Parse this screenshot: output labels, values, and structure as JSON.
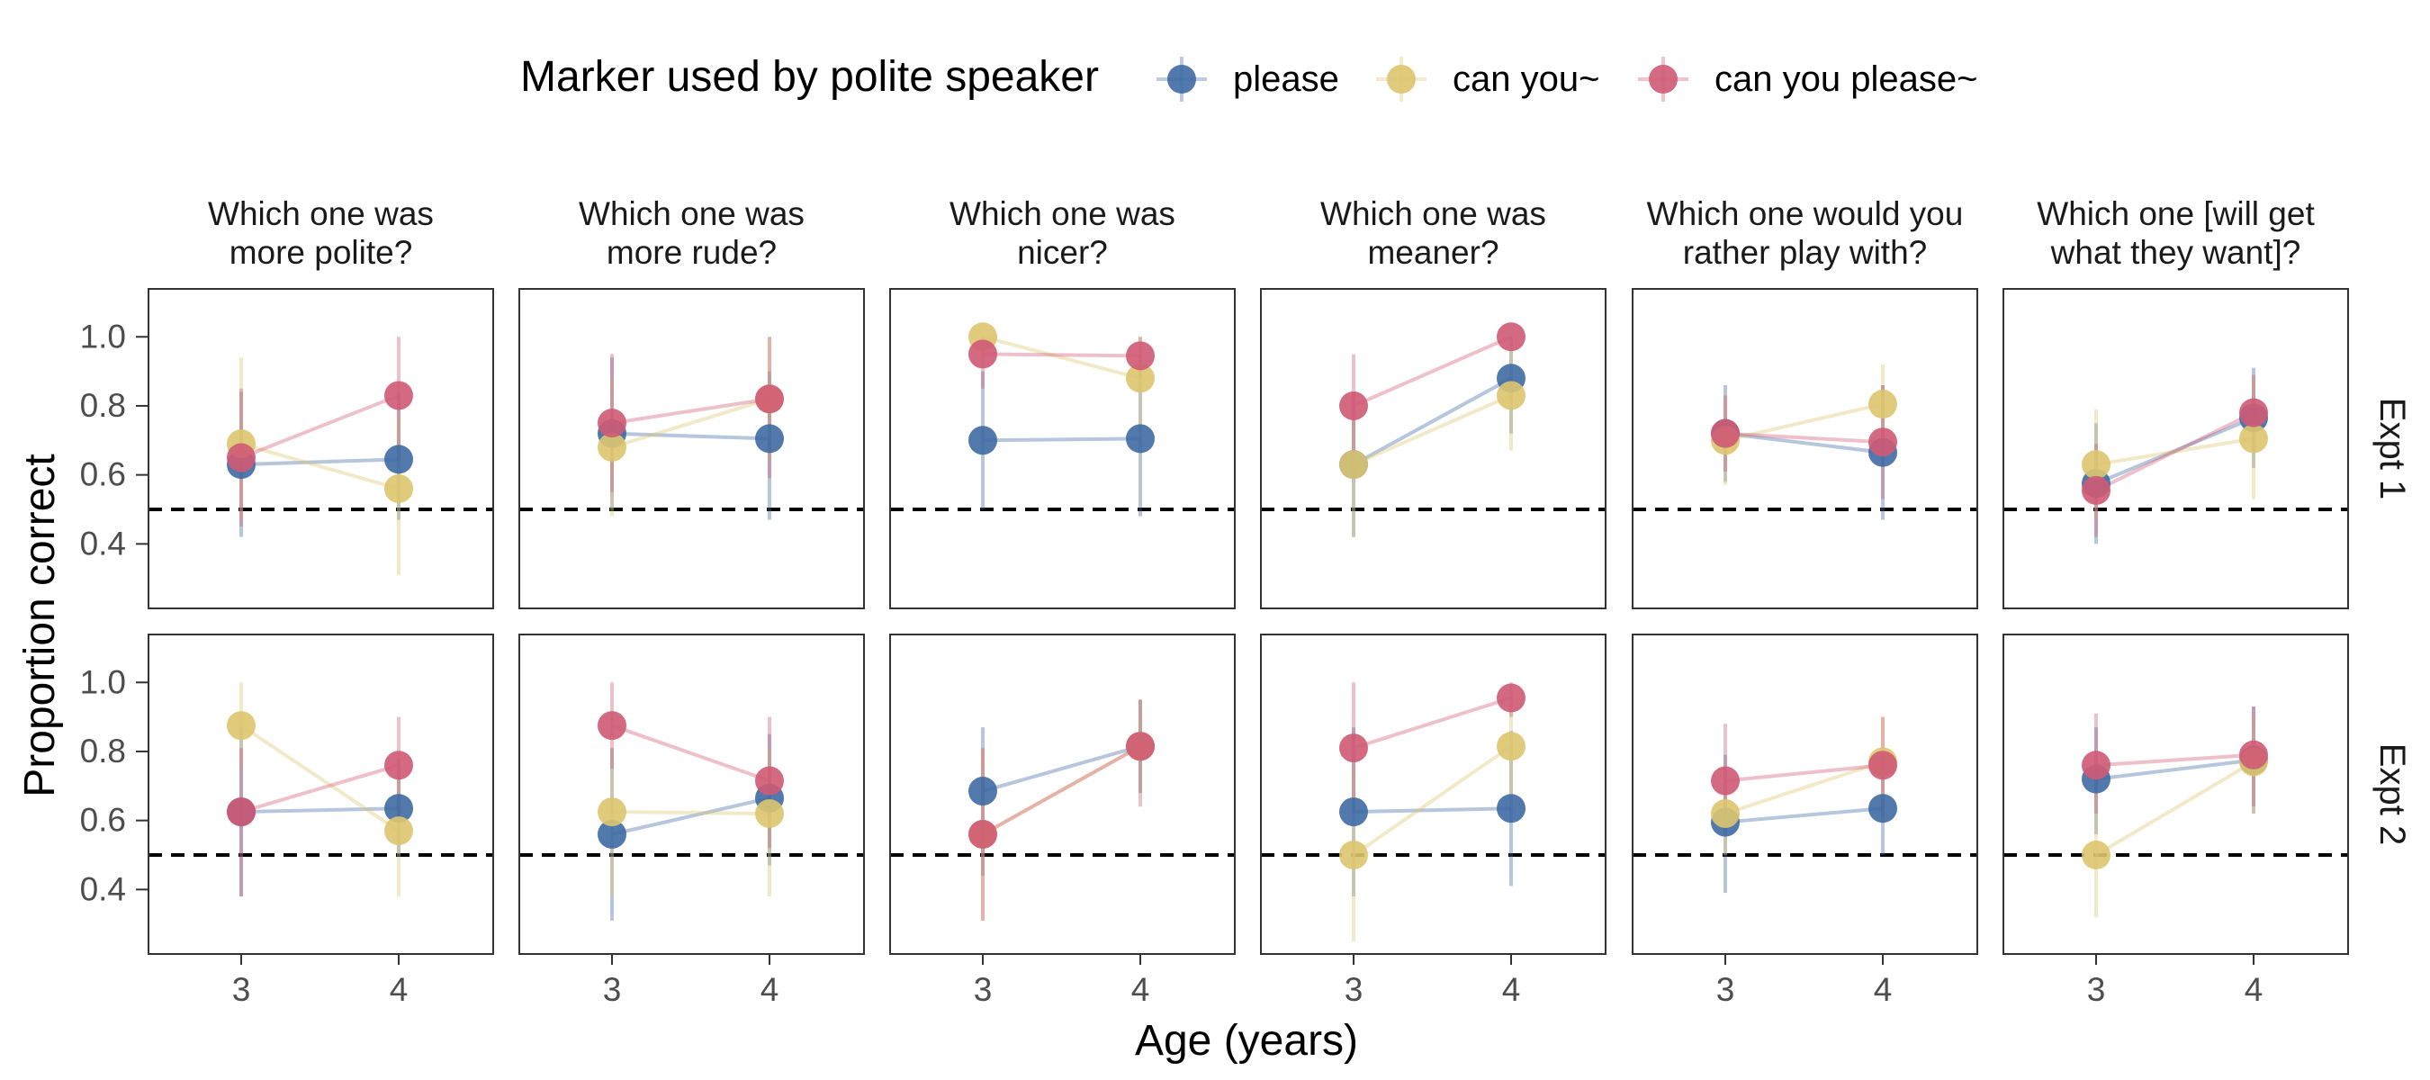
{
  "chart_data": {
    "type": "scatter",
    "xlabel": "Age (years)",
    "ylabel": "Proportion correct",
    "x_ticks": [
      "3",
      "4"
    ],
    "y_ticks": [
      "0.4",
      "0.6",
      "0.8",
      "1.0"
    ],
    "ylim": [
      0.22,
      1.14
    ],
    "reference_line": 0.5,
    "legend": {
      "title": "Marker used by polite speaker",
      "placement": "top",
      "entries": [
        {
          "name": "please",
          "color": "#3e6aa3"
        },
        {
          "name": "can you~",
          "color": "#ddc56f"
        },
        {
          "name": "can you please~",
          "color": "#cf5a74"
        }
      ]
    },
    "columns": [
      [
        "Which one was",
        "more polite?"
      ],
      [
        "Which one was",
        "more rude?"
      ],
      [
        "Which one was",
        "nicer?"
      ],
      [
        "Which one was",
        "meaner?"
      ],
      [
        "Which one would you",
        "rather play with?"
      ],
      [
        "Which one [will get",
        "what they want]?"
      ]
    ],
    "rows": [
      "Expt 1",
      "Expt 2"
    ],
    "panels": [
      [
        {
          "please": {
            "x": [
              3,
              4
            ],
            "y": [
              0.63,
              0.645
            ],
            "lo": [
              0.42,
              0.47
            ],
            "hi": [
              0.84,
              0.84
            ]
          },
          "can you~": {
            "x": [
              3,
              4
            ],
            "y": [
              0.69,
              0.56
            ],
            "lo": [
              0.47,
              0.31
            ],
            "hi": [
              0.94,
              0.78
            ]
          },
          "can you please~": {
            "x": [
              3,
              4
            ],
            "y": [
              0.65,
              0.83
            ],
            "lo": [
              0.45,
              0.64
            ],
            "hi": [
              0.85,
              1.0
            ]
          }
        },
        {
          "please": {
            "x": [
              3,
              4
            ],
            "y": [
              0.72,
              0.705
            ],
            "lo": [
              0.5,
              0.47
            ],
            "hi": [
              0.94,
              0.9
            ]
          },
          "can you~": {
            "x": [
              3,
              4
            ],
            "y": [
              0.68,
              0.82
            ],
            "lo": [
              0.48,
              0.64
            ],
            "hi": [
              0.88,
              1.0
            ]
          },
          "can you please~": {
            "x": [
              3,
              4
            ],
            "y": [
              0.75,
              0.82
            ],
            "lo": [
              0.55,
              0.59
            ],
            "hi": [
              0.95,
              1.0
            ]
          }
        },
        {
          "please": {
            "x": [
              3,
              4
            ],
            "y": [
              0.7,
              0.705
            ],
            "lo": [
              0.5,
              0.48
            ],
            "hi": [
              0.9,
              0.92
            ]
          },
          "can you~": {
            "x": [
              3,
              4
            ],
            "y": [
              1.0,
              0.88
            ],
            "lo": [
              1.0,
              0.7
            ],
            "hi": [
              1.0,
              1.0
            ]
          },
          "can you please~": {
            "x": [
              3,
              4
            ],
            "y": [
              0.95,
              0.945
            ],
            "lo": [
              0.85,
              0.88
            ],
            "hi": [
              1.0,
              1.0
            ]
          }
        },
        {
          "please": {
            "x": [
              3,
              4
            ],
            "y": [
              0.63,
              0.88
            ],
            "lo": [
              0.42,
              0.72
            ],
            "hi": [
              0.84,
              1.0
            ]
          },
          "can you~": {
            "x": [
              3,
              4
            ],
            "y": [
              0.63,
              0.83
            ],
            "lo": [
              0.42,
              0.67
            ],
            "hi": [
              0.84,
              0.99
            ]
          },
          "can you please~": {
            "x": [
              3,
              4
            ],
            "y": [
              0.8,
              1.0
            ],
            "lo": [
              0.64,
              1.0
            ],
            "hi": [
              0.95,
              1.0
            ]
          }
        },
        {
          "please": {
            "x": [
              3,
              4
            ],
            "y": [
              0.72,
              0.665
            ],
            "lo": [
              0.58,
              0.47
            ],
            "hi": [
              0.86,
              0.86
            ]
          },
          "can you~": {
            "x": [
              3,
              4
            ],
            "y": [
              0.7,
              0.805
            ],
            "lo": [
              0.57,
              0.69
            ],
            "hi": [
              0.83,
              0.92
            ]
          },
          "can you please~": {
            "x": [
              3,
              4
            ],
            "y": [
              0.72,
              0.695
            ],
            "lo": [
              0.61,
              0.53
            ],
            "hi": [
              0.83,
              0.86
            ]
          }
        },
        {
          "please": {
            "x": [
              3,
              4
            ],
            "y": [
              0.575,
              0.765
            ],
            "lo": [
              0.4,
              0.62
            ],
            "hi": [
              0.75,
              0.91
            ]
          },
          "can you~": {
            "x": [
              3,
              4
            ],
            "y": [
              0.63,
              0.705
            ],
            "lo": [
              0.47,
              0.53
            ],
            "hi": [
              0.79,
              0.88
            ]
          },
          "can you please~": {
            "x": [
              3,
              4
            ],
            "y": [
              0.555,
              0.78
            ],
            "lo": [
              0.42,
              0.67
            ],
            "hi": [
              0.69,
              0.89
            ]
          }
        }
      ],
      [
        {
          "please": {
            "x": [
              3,
              4
            ],
            "y": [
              0.625,
              0.635
            ],
            "lo": [
              0.38,
              0.5
            ],
            "hi": [
              0.87,
              0.78
            ]
          },
          "can you~": {
            "x": [
              3,
              4
            ],
            "y": [
              0.875,
              0.57
            ],
            "lo": [
              0.75,
              0.38
            ],
            "hi": [
              1.0,
              0.76
            ]
          },
          "can you please~": {
            "x": [
              3,
              4
            ],
            "y": [
              0.625,
              0.76
            ],
            "lo": [
              0.38,
              0.61
            ],
            "hi": [
              0.81,
              0.9
            ]
          }
        },
        {
          "please": {
            "x": [
              3,
              4
            ],
            "y": [
              0.56,
              0.665
            ],
            "lo": [
              0.31,
              0.47
            ],
            "hi": [
              0.81,
              0.85
            ]
          },
          "can you~": {
            "x": [
              3,
              4
            ],
            "y": [
              0.625,
              0.62
            ],
            "lo": [
              0.38,
              0.38
            ],
            "hi": [
              0.81,
              0.81
            ]
          },
          "can you please~": {
            "x": [
              3,
              4
            ],
            "y": [
              0.875,
              0.715
            ],
            "lo": [
              0.75,
              0.52
            ],
            "hi": [
              1.0,
              0.9
            ]
          }
        },
        {
          "please": {
            "x": [
              3,
              4
            ],
            "y": [
              0.685,
              0.815
            ],
            "lo": [
              0.44,
              0.68
            ],
            "hi": [
              0.87,
              0.95
            ]
          },
          "can you~": {
            "x": [
              3,
              4
            ],
            "y": [
              0.56,
              0.815
            ],
            "lo": [
              0.31,
              0.68
            ],
            "hi": [
              0.81,
              0.95
            ]
          },
          "can you please~": {
            "x": [
              3,
              4
            ],
            "y": [
              0.56,
              0.815
            ],
            "lo": [
              0.31,
              0.64
            ],
            "hi": [
              0.81,
              0.95
            ]
          }
        },
        {
          "please": {
            "x": [
              3,
              4
            ],
            "y": [
              0.625,
              0.635
            ],
            "lo": [
              0.38,
              0.41
            ],
            "hi": [
              0.87,
              0.86
            ]
          },
          "can you~": {
            "x": [
              3,
              4
            ],
            "y": [
              0.5,
              0.815
            ],
            "lo": [
              0.25,
              0.64
            ],
            "hi": [
              0.75,
              0.95
            ]
          },
          "can you please~": {
            "x": [
              3,
              4
            ],
            "y": [
              0.81,
              0.955
            ],
            "lo": [
              0.62,
              0.9
            ],
            "hi": [
              1.0,
              1.0
            ]
          }
        },
        {
          "please": {
            "x": [
              3,
              4
            ],
            "y": [
              0.595,
              0.635
            ],
            "lo": [
              0.39,
              0.5
            ],
            "hi": [
              0.79,
              0.78
            ]
          },
          "can you~": {
            "x": [
              3,
              4
            ],
            "y": [
              0.62,
              0.77
            ],
            "lo": [
              0.5,
              0.64
            ],
            "hi": [
              0.75,
              0.9
            ]
          },
          "can you please~": {
            "x": [
              3,
              4
            ],
            "y": [
              0.715,
              0.76
            ],
            "lo": [
              0.56,
              0.61
            ],
            "hi": [
              0.88,
              0.9
            ]
          }
        },
        {
          "please": {
            "x": [
              3,
              4
            ],
            "y": [
              0.72,
              0.775
            ],
            "lo": [
              0.56,
              0.62
            ],
            "hi": [
              0.87,
              0.93
            ]
          },
          "can you~": {
            "x": [
              3,
              4
            ],
            "y": [
              0.5,
              0.77
            ],
            "lo": [
              0.32,
              0.62
            ],
            "hi": [
              0.68,
              0.9
            ]
          },
          "can you please~": {
            "x": [
              3,
              4
            ],
            "y": [
              0.76,
              0.79
            ],
            "lo": [
              0.62,
              0.64
            ],
            "hi": [
              0.91,
              0.93
            ]
          }
        }
      ]
    ]
  }
}
